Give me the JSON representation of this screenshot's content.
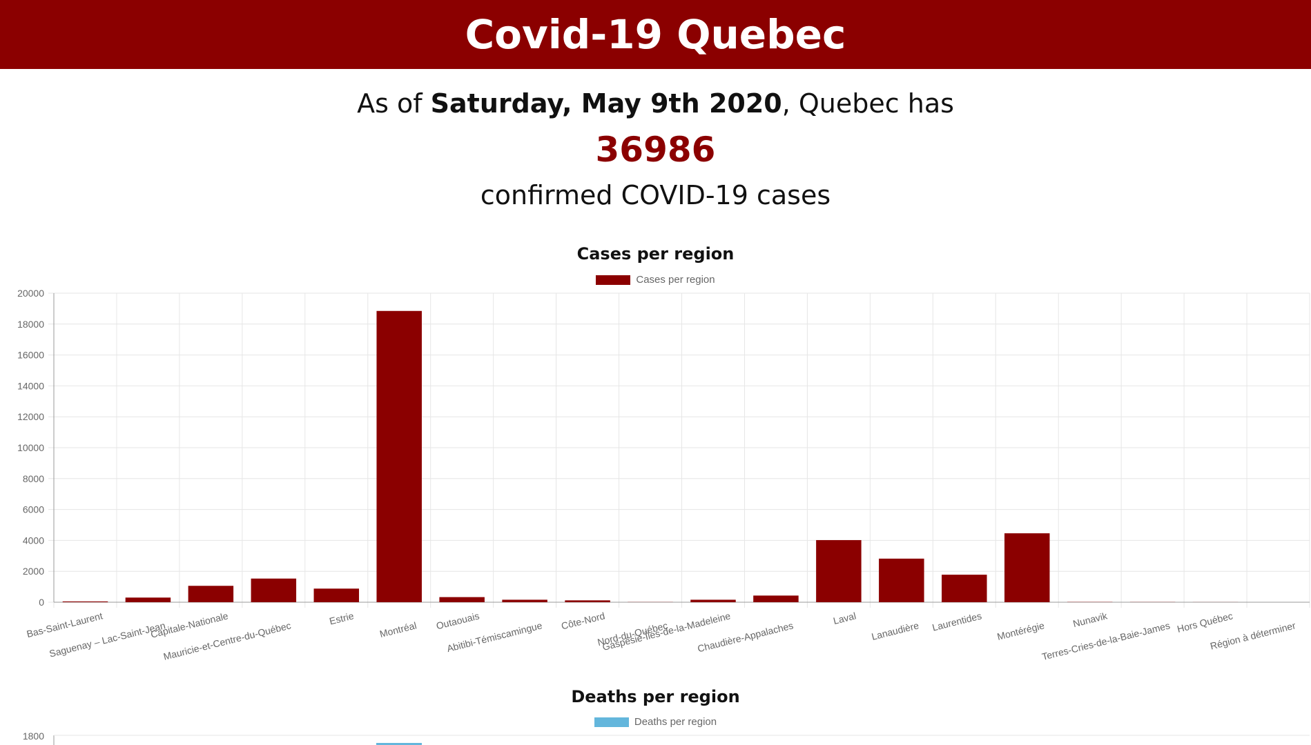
{
  "header": {
    "title": "Covid-19 Quebec"
  },
  "summary": {
    "prefix": "As of ",
    "date": "Saturday, May 9th 2020",
    "suffix": ", Quebec has",
    "count": "36986",
    "line3": "confirmed COVID-19 cases"
  },
  "colors": {
    "brand": "#8b0000",
    "cases_bar": "#8b0000",
    "deaths_bar": "#63b6dc"
  },
  "chart_data": [
    {
      "type": "bar",
      "title": "Cases per region",
      "categories": [
        "Bas-Saint-Laurent",
        "Saguenay – Lac-Saint-Jean",
        "Capitale-Nationale",
        "Mauricie-et-Centre-du-Québec",
        "Estrie",
        "Montréal",
        "Outaouais",
        "Abitibi-Témiscamingue",
        "Côte-Nord",
        "Nord-du-Québec",
        "Gaspésie-Îles-de-la-Madeleine",
        "Chaudière-Appalaches",
        "Laval",
        "Lanaudière",
        "Laurentides",
        "Montérégie",
        "Nunavik",
        "Terres-Cries-de-la-Baie-James",
        "Hors Québec",
        "Région à déterminer"
      ],
      "series": [
        {
          "name": "Cases per region",
          "values": [
            50,
            300,
            1060,
            1530,
            880,
            18850,
            330,
            160,
            120,
            10,
            160,
            430,
            4020,
            2820,
            1780,
            4460,
            15,
            10,
            5,
            0
          ]
        }
      ],
      "yticks": [
        "0",
        "2000",
        "4000",
        "6000",
        "8000",
        "10000",
        "12000",
        "14000",
        "16000",
        "18000",
        "20000"
      ],
      "ylim": [
        0,
        20000
      ],
      "grid": true,
      "legend_position": "top"
    },
    {
      "type": "bar",
      "title": "Deaths per region",
      "series": [
        {
          "name": "Deaths per region"
        }
      ],
      "yticks": [
        "1800"
      ]
    }
  ]
}
